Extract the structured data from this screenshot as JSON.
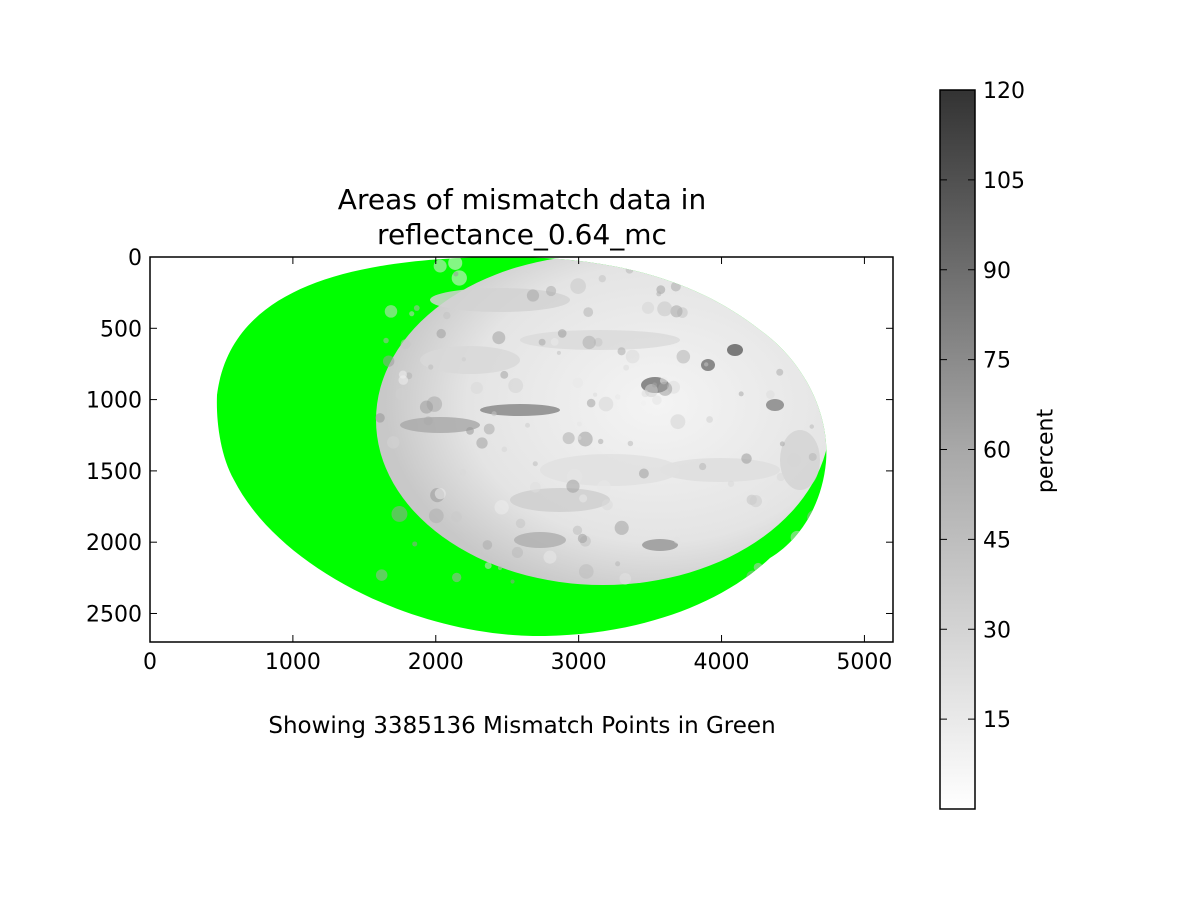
{
  "chart_data": [
    {
      "type": "heatmap",
      "title_lines": [
        "Areas of mismatch data in",
        "reflectance_0.64_mc"
      ],
      "footnote": "Showing 3385136 Mismatch Points in Green",
      "xlim": [
        0,
        5200
      ],
      "ylim": [
        2700,
        0
      ],
      "y_axis_inverted": true,
      "x_ticks": [
        0,
        1000,
        2000,
        3000,
        4000,
        5000
      ],
      "y_ticks": [
        0,
        500,
        1000,
        1500,
        2000,
        2500
      ],
      "mismatch_points": 3385136,
      "mismatch_color": "#00ff00",
      "image_region_color": "#f0f0f0",
      "grid": false
    },
    {
      "type": "colorbar",
      "label": "percent",
      "range": [
        0,
        120
      ],
      "ticks": [
        15,
        30,
        45,
        60,
        75,
        90,
        105,
        120
      ],
      "colormap": "Greys",
      "low_color": "#ffffff",
      "high_color": "#333333"
    }
  ]
}
